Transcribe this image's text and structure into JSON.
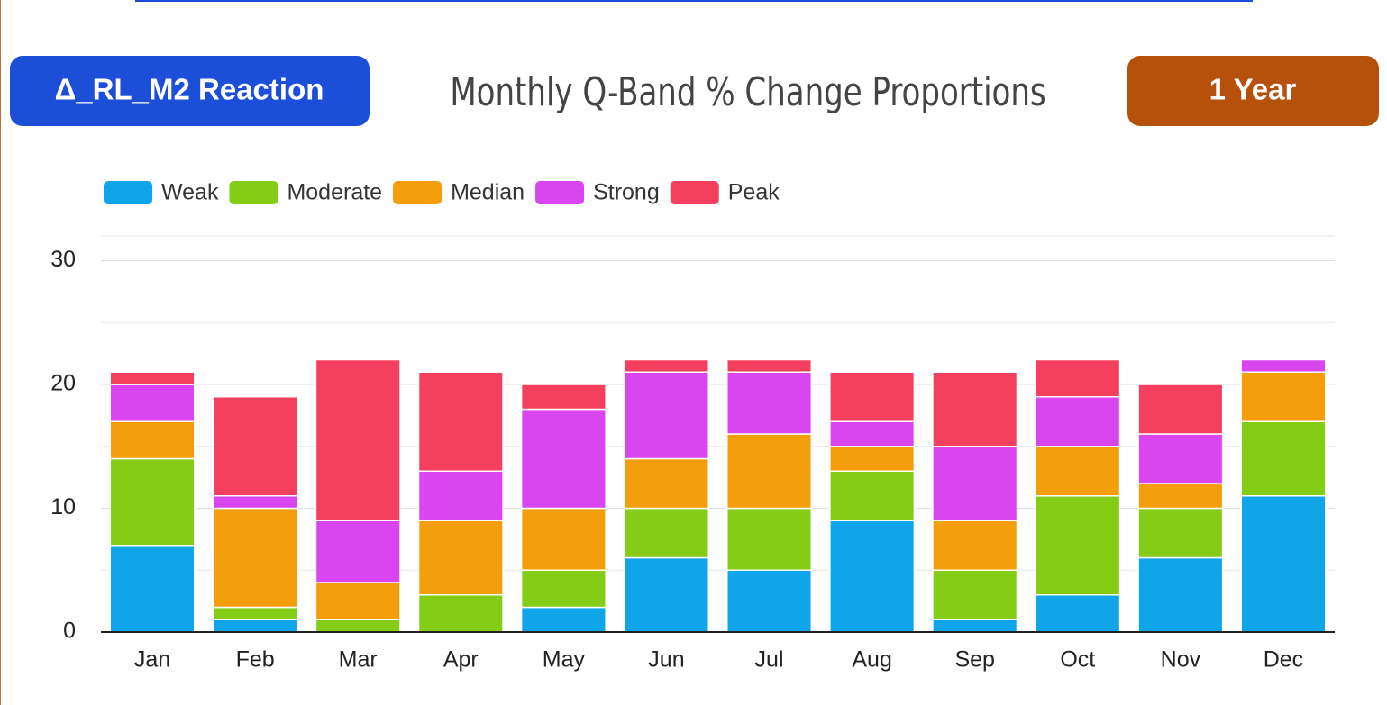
{
  "header": {
    "left_badge": "Δ_RL_M2 Reaction",
    "right_badge": "1 Year"
  },
  "chart_data": {
    "type": "stacked_bar",
    "title": "Monthly Q-Band % Change Proportions",
    "categories": [
      "Jan",
      "Feb",
      "Mar",
      "Apr",
      "May",
      "Jun",
      "Jul",
      "Aug",
      "Sep",
      "Oct",
      "Nov",
      "Dec"
    ],
    "series": [
      {
        "name": "Weak",
        "color": "#10a5e8",
        "values": [
          7,
          1,
          0,
          0,
          2,
          6,
          5,
          9,
          1,
          3,
          6,
          11
        ]
      },
      {
        "name": "Moderate",
        "color": "#84cc16",
        "values": [
          7,
          1,
          1,
          3,
          3,
          4,
          5,
          4,
          4,
          8,
          4,
          6
        ]
      },
      {
        "name": "Median",
        "color": "#f59e0b",
        "values": [
          3,
          8,
          3,
          6,
          5,
          4,
          6,
          2,
          4,
          4,
          2,
          4
        ]
      },
      {
        "name": "Strong",
        "color": "#d946ef",
        "values": [
          3,
          1,
          5,
          4,
          8,
          7,
          5,
          2,
          6,
          4,
          4,
          1
        ]
      },
      {
        "name": "Peak",
        "color": "#f43f5e",
        "values": [
          1,
          8,
          13,
          8,
          2,
          1,
          1,
          4,
          6,
          3,
          4,
          0
        ]
      }
    ],
    "ylim": [
      0,
      32
    ],
    "yticks": [
      0,
      10,
      20,
      30
    ],
    "minor_gridlines": [
      5,
      15,
      25
    ],
    "grid": true,
    "legend": "top-left"
  }
}
